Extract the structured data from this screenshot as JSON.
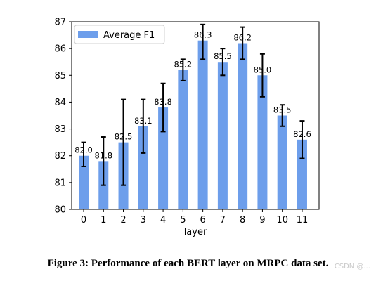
{
  "chart_data": {
    "type": "bar",
    "categories": [
      "0",
      "1",
      "2",
      "3",
      "4",
      "5",
      "6",
      "7",
      "8",
      "9",
      "10",
      "11"
    ],
    "series": [
      {
        "name": "Average F1",
        "values": [
          82.0,
          81.8,
          82.5,
          83.1,
          83.8,
          85.2,
          86.3,
          85.5,
          86.2,
          85.0,
          83.5,
          82.6
        ],
        "error_low": [
          81.6,
          80.9,
          80.9,
          82.1,
          82.9,
          84.8,
          85.6,
          85.0,
          85.6,
          84.2,
          83.1,
          81.9
        ],
        "error_high": [
          82.5,
          82.7,
          84.1,
          84.1,
          84.7,
          85.6,
          86.9,
          86.0,
          86.8,
          85.8,
          83.9,
          83.3
        ],
        "data_labels": [
          "82.0",
          "81.8",
          "82.5",
          "83.1",
          "83.8",
          "85.2",
          "86.3",
          "85.5",
          "86.2",
          "85.0",
          "83.5",
          "82.6"
        ],
        "color": "#6d9eeb"
      }
    ],
    "title": "",
    "xlabel": "layer",
    "ylabel": "",
    "ylim": [
      80,
      87
    ],
    "yticks": [
      "80",
      "81",
      "82",
      "83",
      "84",
      "85",
      "86",
      "87"
    ],
    "grid": false,
    "legend_position": "top-left"
  },
  "caption": "Figure 3: Performance of each BERT layer on MRPC data set.",
  "watermark": "CSDN @..."
}
